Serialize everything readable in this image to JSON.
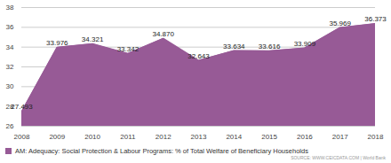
{
  "chart_data": {
    "type": "area",
    "x": [
      2008,
      2009,
      2010,
      2011,
      2012,
      2013,
      2014,
      2015,
      2016,
      2017,
      2018
    ],
    "series": [
      {
        "name": "AM: Adequacy: Social Protection & Labour Programs: % of Total Welfare of Beneficiary Households",
        "color": "#975a96",
        "values": [
          27.493,
          33.976,
          34.321,
          33.342,
          34.87,
          32.643,
          33.634,
          33.616,
          33.909,
          35.969,
          36.373
        ],
        "value_labels": [
          "27.493",
          "33.976",
          "34.321",
          "33.342",
          "34.870",
          "32.643",
          "33.634",
          "33.616",
          "33.909",
          "35.969",
          "36.373"
        ]
      }
    ],
    "xlim": [
      2008,
      2018
    ],
    "xticks": [
      2008,
      2009,
      2010,
      2011,
      2012,
      2013,
      2014,
      2015,
      2016,
      2017,
      2018
    ],
    "ylim": [
      26,
      38
    ],
    "yticks": [
      26,
      28,
      30,
      32,
      34,
      36,
      38
    ],
    "grid": true,
    "data_labels": true,
    "legend": "bottom",
    "source": "SOURCE: WWW.CEICDATA.COM | World Bank"
  }
}
